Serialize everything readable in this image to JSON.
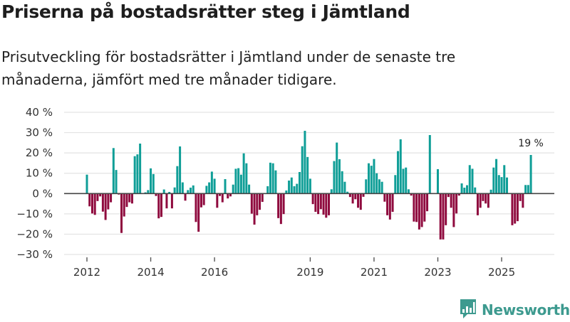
{
  "header": {
    "title": "Priserna på bostadsrätter steg i Jämtland",
    "subtitle": "Prisutveckling för bostadsrätter i Jämtland under de senaste tre månaderna, jämfört med tre månader tidigare."
  },
  "brand": {
    "name": "Newsworthy",
    "icon": "bar-chart-speech-bubble-icon",
    "color": "#3d9a8f"
  },
  "chart_data": {
    "type": "bar",
    "title": "Priserna på bostadsrätter steg i Jämtland",
    "subtitle": "Prisutveckling för bostadsrätter i Jämtland under de senaste tre månaderna, jämfört med tre månader tidigare.",
    "xlabel": "",
    "ylabel": "",
    "unit": "%",
    "start_month": "2012-01",
    "frequency": "monthly",
    "ylim": [
      -30,
      40
    ],
    "yticks": [
      -30,
      -20,
      -10,
      0,
      10,
      20,
      30,
      40
    ],
    "ytick_labels": [
      "−30 %",
      "−20 %",
      "−10 %",
      "0 %",
      "10 %",
      "20 %",
      "30 %",
      "40 %"
    ],
    "xticks": [
      2012,
      2014,
      2016,
      2019,
      2021,
      2023,
      2025
    ],
    "xtick_labels": [
      "2012",
      "2014",
      "2016",
      "2019",
      "2021",
      "2023",
      "2025"
    ],
    "grid": true,
    "colors": {
      "positive": "#0f9e97",
      "negative": "#8f0a3e"
    },
    "annotation": {
      "label": "19 %",
      "target": "last"
    },
    "values": [
      9.3,
      -6.3,
      -9.8,
      -10.5,
      -3.7,
      -1.4,
      -8.9,
      -13.0,
      -7.8,
      -4.3,
      22.4,
      11.6,
      -0.5,
      -19.4,
      -11.3,
      -6.6,
      -4.3,
      -4.9,
      18.4,
      19.3,
      24.6,
      0.0,
      0.6,
      1.7,
      12.4,
      9.6,
      -1.2,
      -12.2,
      -11.5,
      2.0,
      -7.3,
      0.8,
      -7.3,
      3.0,
      13.5,
      23.2,
      5.5,
      -3.5,
      1.7,
      2.9,
      4.0,
      -14.0,
      -18.8,
      -6.8,
      -5.7,
      3.8,
      5.5,
      10.8,
      7.3,
      -7.0,
      -1.2,
      -4.3,
      7.1,
      -2.4,
      -1.4,
      4.4,
      12.2,
      12.5,
      9.3,
      19.8,
      14.9,
      4.4,
      -9.9,
      -15.3,
      -10.7,
      -8.0,
      -4.1,
      0.0,
      3.6,
      15.2,
      14.9,
      11.4,
      -12.1,
      -15.0,
      -10.1,
      1.5,
      6.4,
      7.9,
      3.6,
      4.8,
      10.6,
      23.3,
      30.9,
      18.0,
      7.3,
      -5.2,
      -9.0,
      -10.1,
      -7.7,
      -10.4,
      -11.9,
      -10.7,
      2.1,
      16.0,
      25.1,
      16.9,
      11.0,
      5.8,
      0.9,
      -1.7,
      -4.9,
      -2.8,
      -7.0,
      -8.0,
      -1.6,
      7.0,
      14.9,
      13.7,
      17.0,
      10.0,
      7.0,
      5.8,
      -4.0,
      -10.7,
      -12.8,
      -9.0,
      9.1,
      20.9,
      26.7,
      12.2,
      12.8,
      2.1,
      -1.0,
      -13.8,
      -14.0,
      -17.7,
      -16.5,
      -13.8,
      -8.7,
      28.8,
      0.0,
      0.0,
      12.0,
      -22.6,
      -22.6,
      -15.6,
      -1.7,
      -7.0,
      -16.5,
      -9.8,
      -1.0,
      5.0,
      2.9,
      4.1,
      14.0,
      12.2,
      3.0,
      -10.7,
      -7.0,
      -3.7,
      -4.9,
      -7.0,
      1.9,
      12.8,
      17.0,
      9.1,
      8.1,
      14.0,
      7.9,
      0.0,
      -15.6,
      -14.8,
      -13.6,
      -3.7,
      -7.0,
      4.2,
      4.2,
      19.0
    ]
  }
}
